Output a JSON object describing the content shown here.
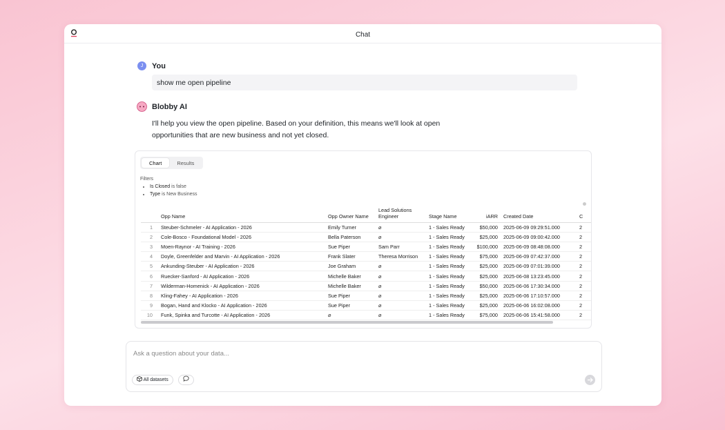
{
  "header": {
    "title": "Chat"
  },
  "messages": [
    {
      "author": "You",
      "avatar": "J",
      "text": "show me open pipeline"
    },
    {
      "author": "Blobby AI",
      "text": "I'll help you view the open pipeline. Based on your definition, this means we'll look at open opportunities that are new business and not yet closed."
    }
  ],
  "result": {
    "tabs": [
      "Chart",
      "Results"
    ],
    "filters": {
      "label": "Filters",
      "items": [
        {
          "field": "Is Closed",
          "condition": "is false"
        },
        {
          "field": "Type",
          "condition": "is New Business"
        }
      ]
    },
    "table": {
      "columns": [
        "Opp Name",
        "Opp Owner Name",
        "Lead Solutions Engineer",
        "Stage Name",
        "iARR",
        "Created Date",
        "C"
      ],
      "rows": [
        [
          "1",
          "Steuber-Schmeler - AI Application - 2026",
          "Emily Turner",
          "⌀",
          "1 - Sales Ready",
          "$50,000",
          "2025-06-09 09:29:51.000",
          "2"
        ],
        [
          "2",
          "Cole-Bosco - Foundational Model - 2026",
          "Bella Paterson",
          "⌀",
          "1 - Sales Ready",
          "$25,000",
          "2025-06-09 09:00:42.000",
          "2"
        ],
        [
          "3",
          "Moen-Raynor - AI Training - 2026",
          "Sue Piper",
          "Sam Parr",
          "1 - Sales Ready",
          "$100,000",
          "2025-06-09 08:48:08.000",
          "2"
        ],
        [
          "4",
          "Doyle, Greenfelder and Marvin - AI Application - 2026",
          "Frank Slater",
          "Theresa Morrison",
          "1 - Sales Ready",
          "$75,000",
          "2025-06-09 07:42:37.000",
          "2"
        ],
        [
          "5",
          "Ankunding-Steuber - AI Application - 2026",
          "Joe Graham",
          "⌀",
          "1 - Sales Ready",
          "$25,000",
          "2025-06-09 07:01:39.000",
          "2"
        ],
        [
          "6",
          "Ruecker-Sanford - AI Application - 2026",
          "Michelle Baker",
          "⌀",
          "1 - Sales Ready",
          "$25,000",
          "2025-06-08 13:23:45.000",
          "2"
        ],
        [
          "7",
          "Wilderman-Homenick - AI Application - 2026",
          "Michelle Baker",
          "⌀",
          "1 - Sales Ready",
          "$50,000",
          "2025-06-06 17:30:34.000",
          "2"
        ],
        [
          "8",
          "Kling-Fahey - AI Application - 2026",
          "Sue Piper",
          "⌀",
          "1 - Sales Ready",
          "$25,000",
          "2025-06-06 17:10:57.000",
          "2"
        ],
        [
          "9",
          "Bogan, Hand and Klocko - AI Application - 2026",
          "Sue Piper",
          "⌀",
          "1 - Sales Ready",
          "$25,000",
          "2025-06-06 16:02:08.000",
          "2"
        ],
        [
          "10",
          "Funk, Spinka and Turcotte - AI Application - 2026",
          "⌀",
          "⌀",
          "1 - Sales Ready",
          "$75,000",
          "2025-06-06 15:41:58.000",
          "2"
        ]
      ]
    }
  },
  "input": {
    "placeholder": "Ask a question about your data...",
    "buttons": [
      "All datasets"
    ]
  }
}
